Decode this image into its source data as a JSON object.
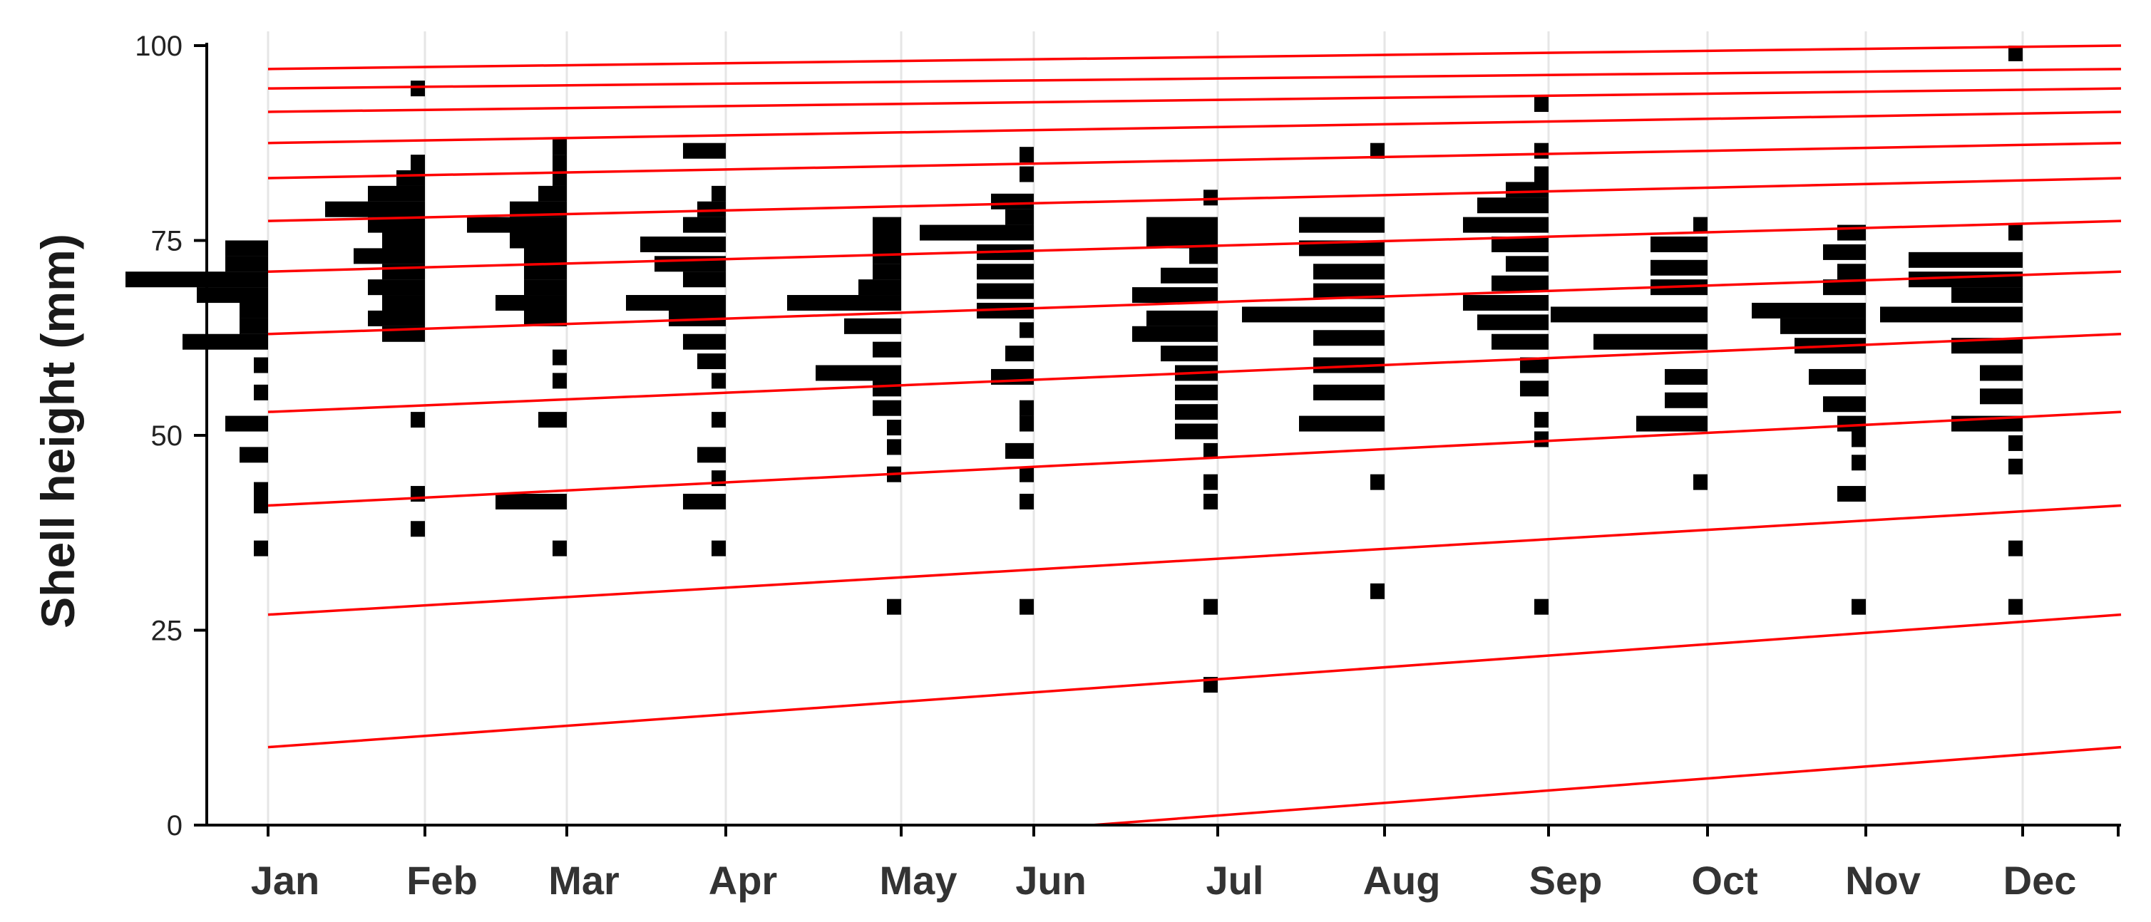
{
  "chart_data": {
    "type": "bar",
    "subtype": "monthly length-frequency histograms with growth curves",
    "title": "",
    "xlabel": "",
    "ylabel": "Shell height (mm)",
    "ylim": [
      0,
      100
    ],
    "yticks": [
      0,
      25,
      50,
      75,
      100
    ],
    "categories": [
      "Jan",
      "Feb",
      "Mar",
      "Apr",
      "May",
      "Jun",
      "Jul",
      "Aug",
      "Sep",
      "Oct",
      "Nov",
      "Dec"
    ],
    "grid": "vertical",
    "colors": {
      "histogram": "#000000",
      "growth_curves": "#ff0000",
      "grid": "#e6e6e6",
      "axis": "#000000"
    },
    "growth_curves": [
      {
        "start": 97,
        "end": 100
      },
      {
        "start": 94.5,
        "end": 97
      },
      {
        "start": 91.5,
        "end": 94.5
      },
      {
        "start": 87.5,
        "end": 91.5
      },
      {
        "start": 83,
        "end": 87.5
      },
      {
        "start": 77.5,
        "end": 83
      },
      {
        "start": 71,
        "end": 77.5
      },
      {
        "start": 63,
        "end": 71
      },
      {
        "start": 53,
        "end": 63
      },
      {
        "start": 41,
        "end": 53
      },
      {
        "start": 27,
        "end": 41
      },
      {
        "start": 10,
        "end": 27
      },
      {
        "start": -8,
        "end": 10
      }
    ],
    "series": [
      {
        "month": "Jan",
        "bins": [
          [
            35.5,
            1
          ],
          [
            41,
            1
          ],
          [
            43,
            1
          ],
          [
            47.5,
            2
          ],
          [
            51.5,
            3
          ],
          [
            55.5,
            1
          ],
          [
            59,
            1
          ],
          [
            62,
            6
          ],
          [
            64,
            2
          ],
          [
            66,
            2
          ],
          [
            68,
            5
          ],
          [
            70,
            10
          ],
          [
            72,
            3
          ],
          [
            74,
            3
          ]
        ]
      },
      {
        "month": "Feb",
        "bins": [
          [
            38,
            1
          ],
          [
            42.5,
            1
          ],
          [
            52,
            1
          ],
          [
            63,
            3
          ],
          [
            65,
            4
          ],
          [
            67,
            3
          ],
          [
            69,
            4
          ],
          [
            71,
            3
          ],
          [
            73,
            5
          ],
          [
            75,
            3
          ],
          [
            77,
            4
          ],
          [
            79,
            7
          ],
          [
            81,
            4
          ],
          [
            83,
            2
          ],
          [
            85,
            1
          ],
          [
            94.5,
            1
          ]
        ]
      },
      {
        "month": "Mar",
        "bins": [
          [
            35.5,
            1
          ],
          [
            41.5,
            5
          ],
          [
            52,
            2
          ],
          [
            57,
            1
          ],
          [
            60,
            1
          ],
          [
            65,
            3
          ],
          [
            67,
            5
          ],
          [
            69,
            3
          ],
          [
            71,
            3
          ],
          [
            73,
            3
          ],
          [
            75,
            4
          ],
          [
            77,
            7
          ],
          [
            79,
            4
          ],
          [
            81,
            2
          ],
          [
            83,
            1
          ],
          [
            85,
            1
          ],
          [
            87,
            1
          ]
        ]
      },
      {
        "month": "Apr",
        "bins": [
          [
            35.5,
            1
          ],
          [
            41.5,
            3
          ],
          [
            44.5,
            1
          ],
          [
            47.5,
            2
          ],
          [
            52,
            1
          ],
          [
            57,
            1
          ],
          [
            59.5,
            2
          ],
          [
            62,
            3
          ],
          [
            65,
            4
          ],
          [
            67,
            7
          ],
          [
            70,
            3
          ],
          [
            72,
            5
          ],
          [
            74.5,
            6
          ],
          [
            77,
            3
          ],
          [
            79,
            2
          ],
          [
            81,
            1
          ],
          [
            86.5,
            3
          ]
        ]
      },
      {
        "month": "May",
        "bins": [
          [
            28,
            1
          ],
          [
            45,
            1
          ],
          [
            48.5,
            1
          ],
          [
            51,
            1
          ],
          [
            53.5,
            2
          ],
          [
            56,
            2
          ],
          [
            58,
            6
          ],
          [
            61,
            2
          ],
          [
            64,
            4
          ],
          [
            67,
            8
          ],
          [
            69,
            3
          ],
          [
            71,
            2
          ],
          [
            73,
            2
          ],
          [
            75,
            2
          ],
          [
            77,
            2
          ]
        ]
      },
      {
        "month": "Jun",
        "bins": [
          [
            28,
            1
          ],
          [
            41.5,
            1
          ],
          [
            45,
            1
          ],
          [
            48,
            2
          ],
          [
            51.5,
            1
          ],
          [
            53.5,
            1
          ],
          [
            57.5,
            3
          ],
          [
            60.5,
            2
          ],
          [
            63.5,
            1
          ],
          [
            66,
            4
          ],
          [
            68.5,
            4
          ],
          [
            71,
            4
          ],
          [
            73.5,
            4
          ],
          [
            76,
            8
          ],
          [
            78,
            2
          ],
          [
            80,
            3
          ],
          [
            83.5,
            1
          ],
          [
            86,
            1
          ]
        ]
      },
      {
        "month": "Jul",
        "bins": [
          [
            18,
            1
          ],
          [
            28,
            1
          ],
          [
            41.5,
            1
          ],
          [
            44,
            1
          ],
          [
            48,
            1
          ],
          [
            50.5,
            3
          ],
          [
            53,
            3
          ],
          [
            55.5,
            3
          ],
          [
            58,
            3
          ],
          [
            60.5,
            4
          ],
          [
            63,
            6
          ],
          [
            65,
            5
          ],
          [
            68,
            6
          ],
          [
            70.5,
            4
          ],
          [
            73,
            2
          ],
          [
            75,
            5
          ],
          [
            77,
            5
          ],
          [
            80.5,
            1
          ]
        ]
      },
      {
        "month": "Aug",
        "bins": [
          [
            30,
            1
          ],
          [
            44,
            1
          ],
          [
            51.5,
            6
          ],
          [
            55.5,
            5
          ],
          [
            59,
            5
          ],
          [
            62.5,
            5
          ],
          [
            65.5,
            10
          ],
          [
            68.5,
            5
          ],
          [
            71,
            5
          ],
          [
            74,
            6
          ],
          [
            77,
            6
          ],
          [
            86.5,
            1
          ]
        ]
      },
      {
        "month": "Sep",
        "bins": [
          [
            28,
            1
          ],
          [
            49.5,
            1
          ],
          [
            52,
            1
          ],
          [
            56,
            2
          ],
          [
            59,
            2
          ],
          [
            62,
            4
          ],
          [
            64.5,
            5
          ],
          [
            67,
            6
          ],
          [
            69.5,
            4
          ],
          [
            72,
            3
          ],
          [
            74.5,
            4
          ],
          [
            77,
            6
          ],
          [
            79.5,
            5
          ],
          [
            81.5,
            3
          ],
          [
            83.5,
            1
          ],
          [
            86.5,
            1
          ],
          [
            92.5,
            1
          ]
        ]
      },
      {
        "month": "Oct",
        "bins": [
          [
            44,
            1
          ],
          [
            51.5,
            5
          ],
          [
            54.5,
            3
          ],
          [
            57.5,
            3
          ],
          [
            62,
            8
          ],
          [
            65.5,
            11
          ],
          [
            69,
            4
          ],
          [
            71.5,
            4
          ],
          [
            74.5,
            4
          ],
          [
            77,
            1
          ]
        ]
      },
      {
        "month": "Nov",
        "bins": [
          [
            28,
            1
          ],
          [
            42.5,
            2
          ],
          [
            46.5,
            1
          ],
          [
            49.5,
            1
          ],
          [
            51.5,
            2
          ],
          [
            54,
            3
          ],
          [
            57.5,
            4
          ],
          [
            61.5,
            5
          ],
          [
            64,
            6
          ],
          [
            66,
            8
          ],
          [
            69,
            3
          ],
          [
            71,
            2
          ],
          [
            73.5,
            3
          ],
          [
            76,
            2
          ]
        ]
      },
      {
        "month": "Dec",
        "bins": [
          [
            28,
            1
          ],
          [
            35.5,
            1
          ],
          [
            46,
            1
          ],
          [
            49,
            1
          ],
          [
            51.5,
            5
          ],
          [
            55,
            3
          ],
          [
            58,
            3
          ],
          [
            61.5,
            5
          ],
          [
            65.5,
            10
          ],
          [
            68,
            5
          ],
          [
            70,
            8
          ],
          [
            72.5,
            8
          ],
          [
            76,
            1
          ],
          [
            99,
            1
          ]
        ]
      }
    ]
  }
}
